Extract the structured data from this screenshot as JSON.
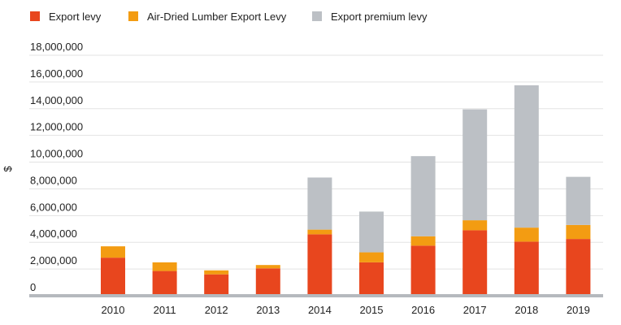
{
  "chart_data": {
    "type": "bar",
    "stacked": true,
    "title": "",
    "xlabel": "",
    "ylabel": "$",
    "ylim": [
      0,
      18000000
    ],
    "y_ticks": [
      0,
      2000000,
      4000000,
      6000000,
      8000000,
      10000000,
      12000000,
      14000000,
      16000000,
      18000000
    ],
    "y_tick_labels": [
      "0",
      "2,000,000",
      "4,000,000",
      "6,000,000",
      "8,000,000",
      "10,000,000",
      "12,000,000",
      "14,000,000",
      "16,000,000",
      "18,000,000"
    ],
    "grid": true,
    "legend_position": "top-left",
    "categories": [
      "2010",
      "2011",
      "2012",
      "2013",
      "2014",
      "2015",
      "2016",
      "2017",
      "2018",
      "2019"
    ],
    "series": [
      {
        "name": "Export levy",
        "color": "#e8461e",
        "values": [
          2850000,
          1850000,
          1600000,
          2050000,
          4600000,
          2500000,
          3750000,
          4900000,
          4050000,
          4250000
        ]
      },
      {
        "name": "Air-Dried Lumber Export Levy",
        "color": "#f39c12",
        "values": [
          850000,
          650000,
          300000,
          250000,
          350000,
          750000,
          700000,
          750000,
          1050000,
          1050000
        ]
      },
      {
        "name": "Export premium levy",
        "color": "#bcc0c5",
        "values": [
          0,
          0,
          0,
          0,
          3900000,
          3050000,
          6000000,
          8300000,
          10650000,
          3600000
        ]
      }
    ]
  }
}
